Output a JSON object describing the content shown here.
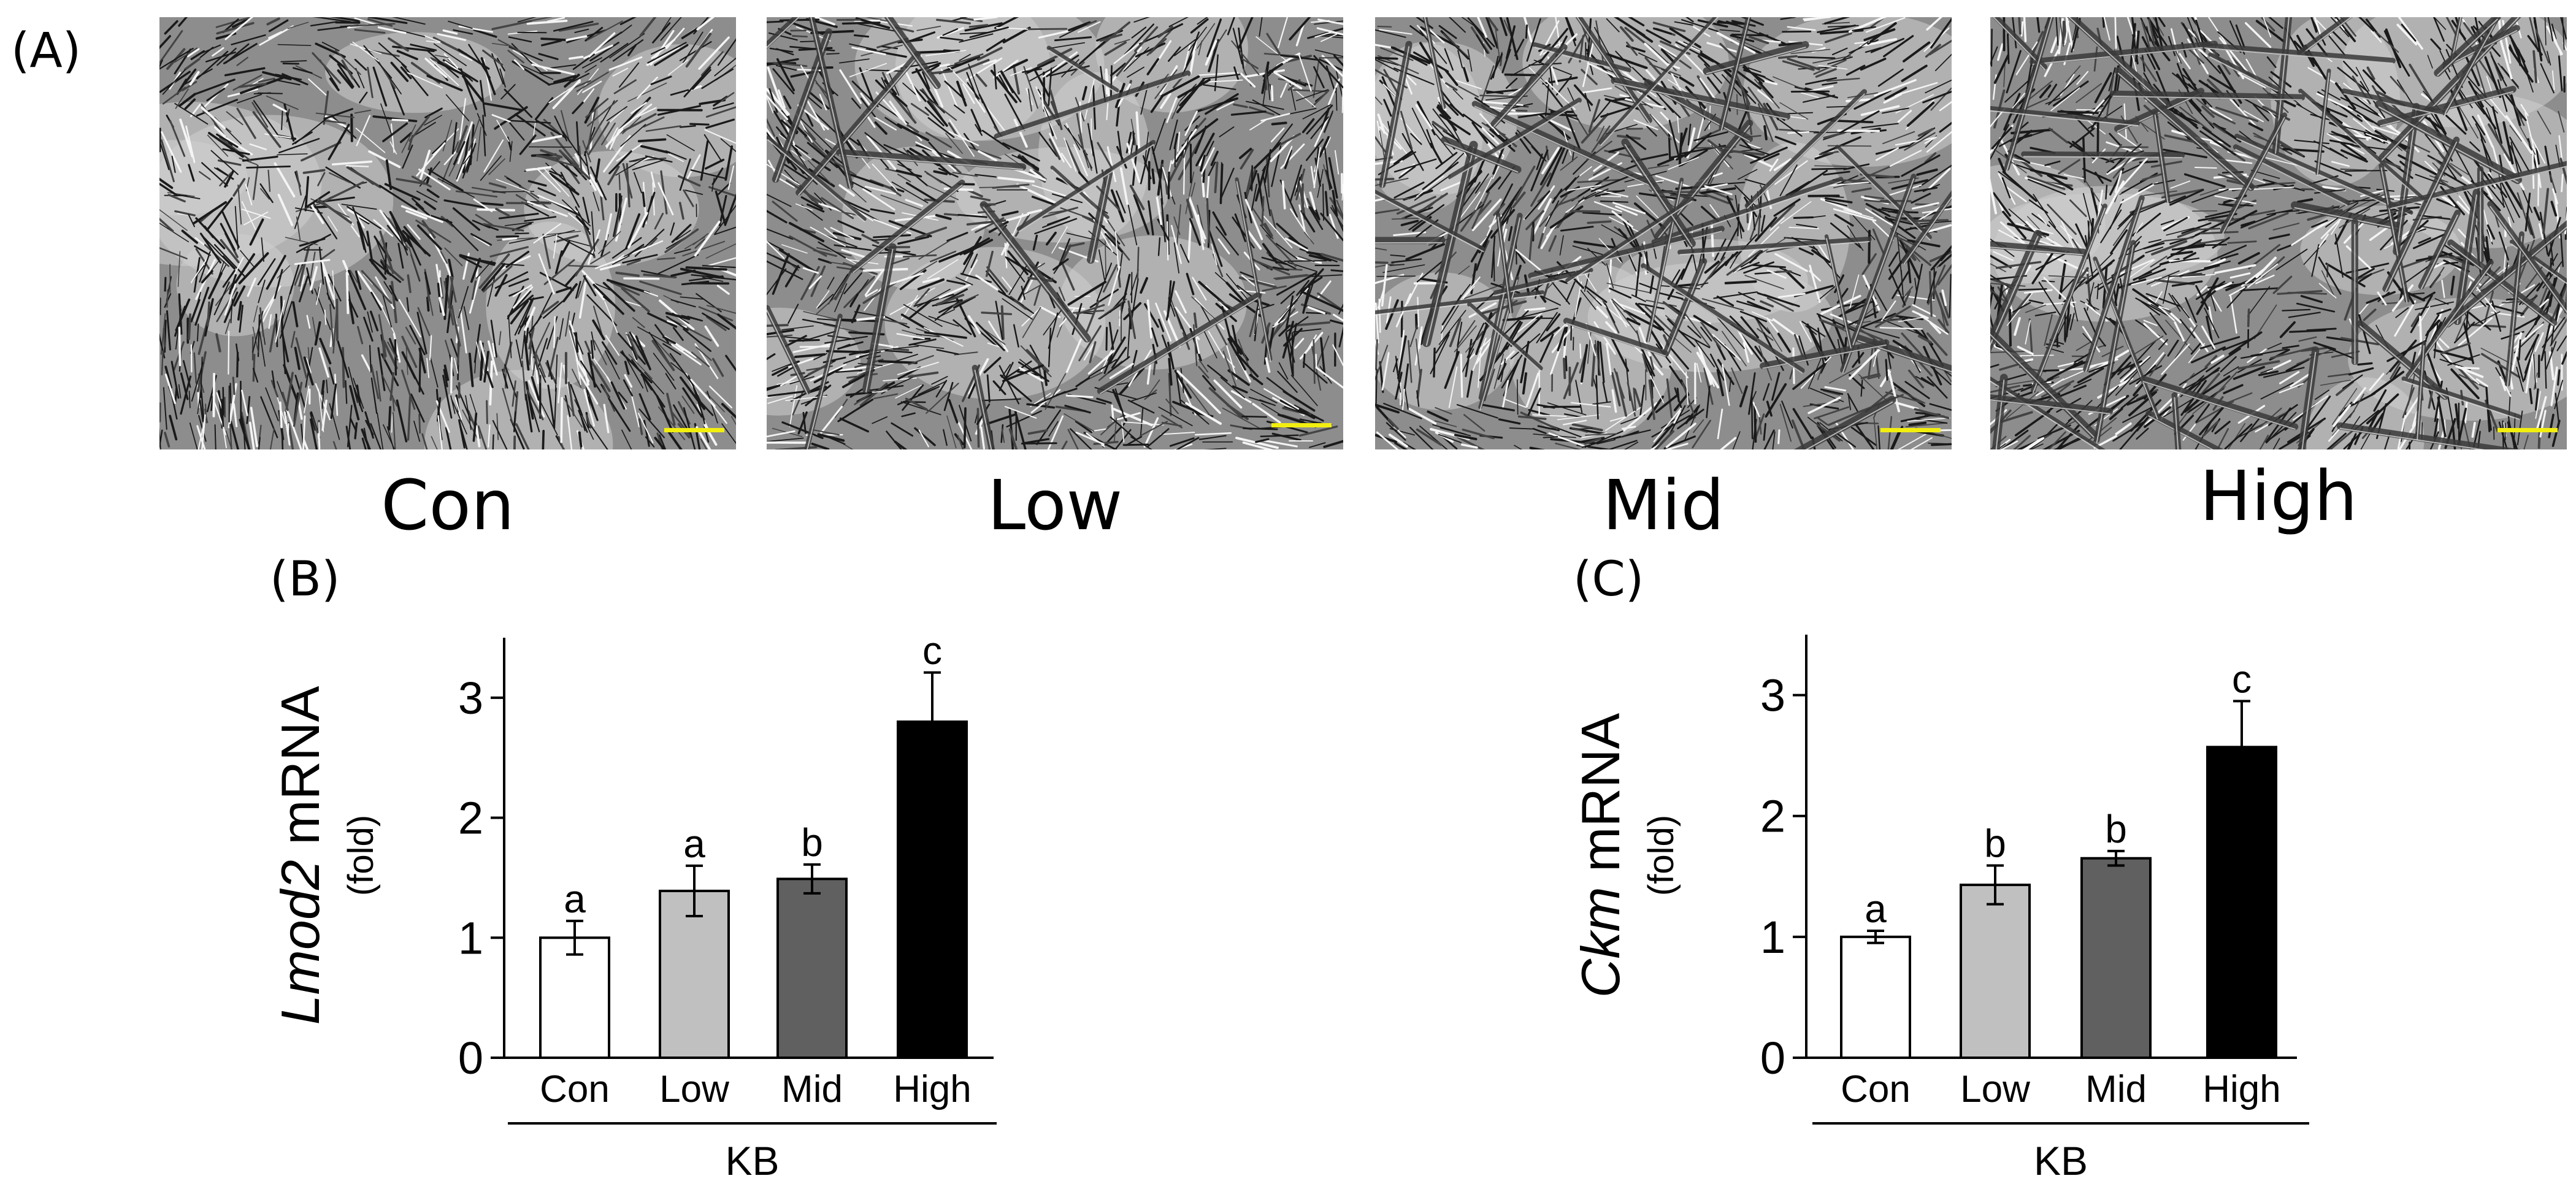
{
  "panel_labels": {
    "a": "(A)",
    "b": "(B)",
    "c": "(C)"
  },
  "micrographs": [
    {
      "caption": "Con"
    },
    {
      "caption": "Low"
    },
    {
      "caption": "Mid"
    },
    {
      "caption": "High"
    }
  ],
  "colors": {
    "scale_bar": "#f2ee10",
    "con": "#ffffff",
    "low": "#c0c0c0",
    "mid": "#606060",
    "high": "#000000"
  },
  "chart_data": [
    {
      "type": "bar",
      "panel": "(B)",
      "gene": "Lmod2",
      "ylabel_suffix": " mRNA",
      "ylabel_sub": "(fold)",
      "xlabel": "KB",
      "categories": [
        "Con",
        "Low",
        "Mid",
        "High"
      ],
      "values": [
        1.0,
        1.39,
        1.49,
        2.8
      ],
      "errors": [
        0.14,
        0.21,
        0.12,
        0.41
      ],
      "letters": [
        "a",
        "a",
        "b",
        "c"
      ],
      "bar_colors": [
        "#ffffff",
        "#c0c0c0",
        "#606060",
        "#000000"
      ],
      "ylim": [
        0,
        3.5
      ],
      "yticks": [
        "0",
        "1",
        "2",
        "3"
      ]
    },
    {
      "type": "bar",
      "panel": "(C)",
      "gene": "Ckm",
      "ylabel_suffix": " mRNA",
      "ylabel_sub": "(fold)",
      "xlabel": "KB",
      "categories": [
        "Con",
        "Low",
        "Mid",
        "High"
      ],
      "values": [
        1.0,
        1.43,
        1.65,
        2.57
      ],
      "errors": [
        0.05,
        0.16,
        0.06,
        0.38
      ],
      "letters": [
        "a",
        "b",
        "b",
        "c"
      ],
      "bar_colors": [
        "#ffffff",
        "#c0c0c0",
        "#606060",
        "#000000"
      ],
      "ylim": [
        0,
        3.5
      ],
      "yticks": [
        "0",
        "1",
        "2",
        "3"
      ]
    }
  ]
}
